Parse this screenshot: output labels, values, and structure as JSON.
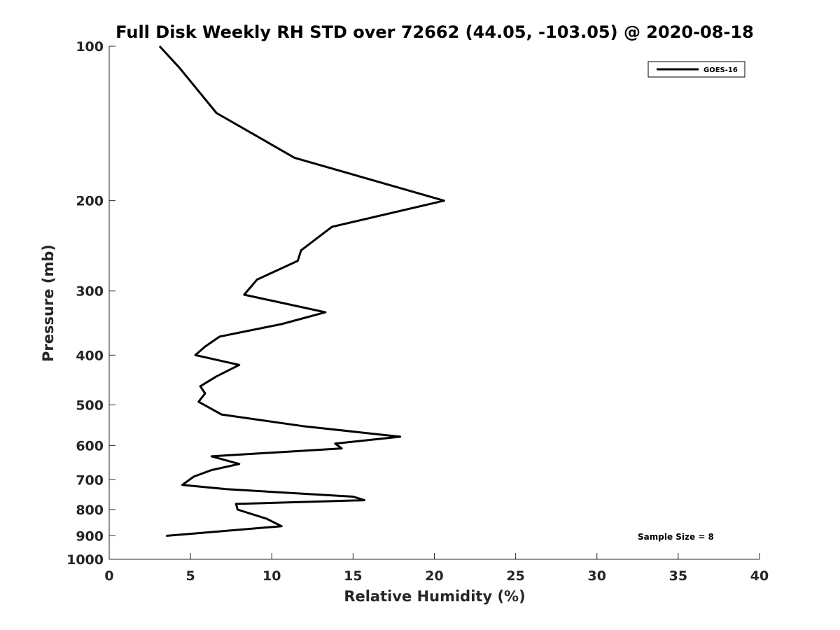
{
  "chart_data": {
    "type": "line",
    "title": "Full Disk Weekly RH STD over 72662 (44.05, -103.05) @ 2020-08-18",
    "xlabel": "Relative Humidity (%)",
    "ylabel": "Pressure (mb)",
    "xlim": [
      0,
      40
    ],
    "ylim": [
      1000,
      100
    ],
    "yscale": "log",
    "y_reversed": true,
    "xticks": [
      0,
      5,
      10,
      15,
      20,
      25,
      30,
      35,
      40
    ],
    "yticks": [
      100,
      200,
      300,
      400,
      500,
      600,
      700,
      800,
      900,
      1000
    ],
    "legend_position": "top-right",
    "annotation": "Sample Size = 8",
    "series": [
      {
        "name": "GOES-16",
        "color": "#000000",
        "x": [
          3.1,
          4.3,
          6.6,
          11.4,
          20.6,
          13.7,
          11.8,
          11.6,
          9.1,
          8.3,
          13.3,
          10.6,
          6.8,
          5.9,
          5.3,
          8.0,
          6.6,
          5.6,
          5.9,
          5.5,
          6.9,
          11.9,
          17.9,
          13.9,
          14.3,
          6.3,
          8.0,
          6.3,
          5.2,
          4.5,
          7.2,
          15.0,
          15.7,
          7.8,
          7.9,
          9.7,
          10.6,
          3.5
        ],
        "y": [
          100,
          110,
          135,
          165,
          200,
          225,
          250,
          262,
          285,
          305,
          330,
          348,
          368,
          385,
          400,
          418,
          440,
          460,
          475,
          493,
          522,
          550,
          577,
          595,
          608,
          630,
          652,
          670,
          690,
          716,
          730,
          755,
          767,
          780,
          800,
          834,
          862,
          900
        ]
      }
    ]
  },
  "legend": {
    "label": "GOES-16"
  },
  "sample_size": "Sample Size = 8"
}
